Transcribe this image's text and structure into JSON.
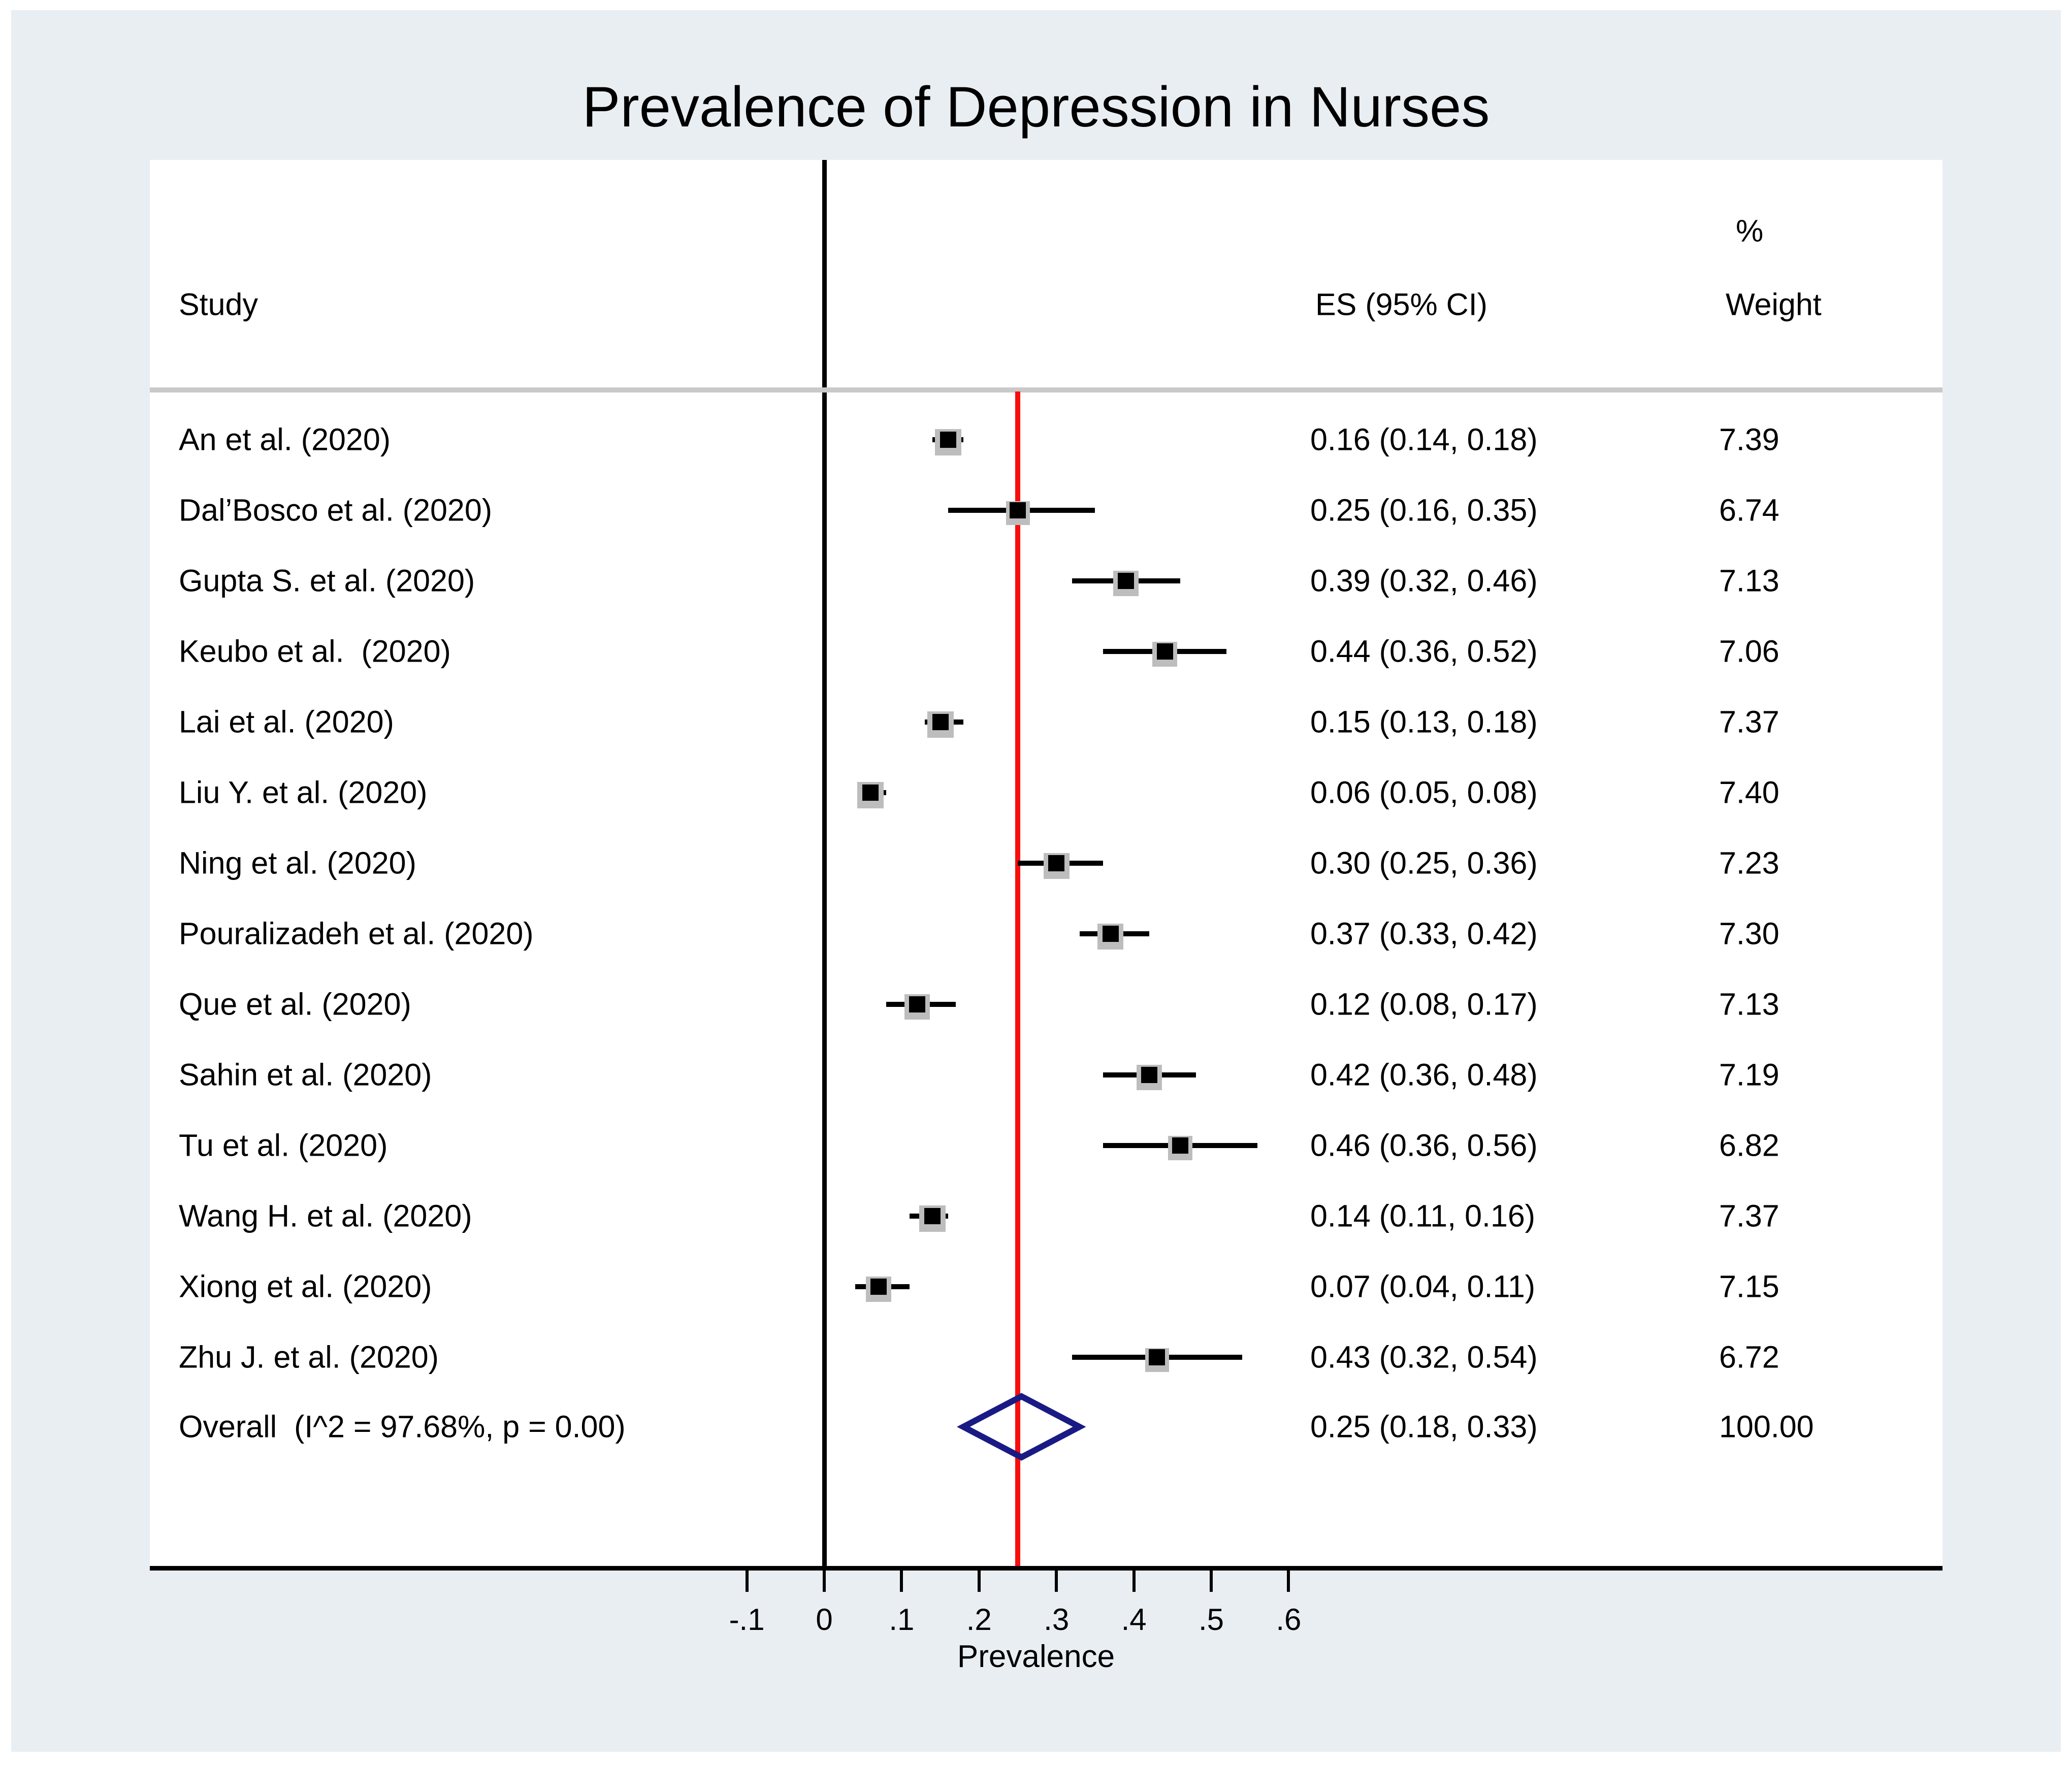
{
  "chart_data": {
    "type": "forest",
    "title": "Prevalence of Depression in Nurses",
    "xlabel": "Prevalence",
    "col_headers": {
      "study": "Study",
      "es": "ES (95% CI)",
      "weight_pct": "%",
      "weight": "Weight"
    },
    "x_ticks": [
      {
        "v": -0.1,
        "label": "-.1"
      },
      {
        "v": 0.0,
        "label": "0"
      },
      {
        "v": 0.1,
        "label": ".1"
      },
      {
        "v": 0.2,
        "label": ".2"
      },
      {
        "v": 0.3,
        "label": ".3"
      },
      {
        "v": 0.4,
        "label": ".4"
      },
      {
        "v": 0.5,
        "label": ".5"
      },
      {
        "v": 0.6,
        "label": ".6"
      }
    ],
    "zero_line": 0.0,
    "overall_ref_line": 0.25,
    "studies": [
      {
        "label": "An et al. (2020)",
        "es": 0.16,
        "lo": 0.14,
        "hi": 0.18,
        "es_ci": "0.16 (0.14, 0.18)",
        "weight": 7.39,
        "weight_text": "7.39"
      },
      {
        "label": "Dal’Bosco et al. (2020)",
        "es": 0.25,
        "lo": 0.16,
        "hi": 0.35,
        "es_ci": "0.25 (0.16, 0.35)",
        "weight": 6.74,
        "weight_text": "6.74"
      },
      {
        "label": "Gupta S. et al. (2020)",
        "es": 0.39,
        "lo": 0.32,
        "hi": 0.46,
        "es_ci": "0.39 (0.32, 0.46)",
        "weight": 7.13,
        "weight_text": "7.13"
      },
      {
        "label": "Keubo et al.  (2020)",
        "es": 0.44,
        "lo": 0.36,
        "hi": 0.52,
        "es_ci": "0.44 (0.36, 0.52)",
        "weight": 7.06,
        "weight_text": "7.06"
      },
      {
        "label": "Lai et al. (2020)",
        "es": 0.15,
        "lo": 0.13,
        "hi": 0.18,
        "es_ci": "0.15 (0.13, 0.18)",
        "weight": 7.37,
        "weight_text": "7.37"
      },
      {
        "label": "Liu Y. et al. (2020)",
        "es": 0.06,
        "lo": 0.05,
        "hi": 0.08,
        "es_ci": "0.06 (0.05, 0.08)",
        "weight": 7.4,
        "weight_text": "7.40"
      },
      {
        "label": "Ning et al. (2020)",
        "es": 0.3,
        "lo": 0.25,
        "hi": 0.36,
        "es_ci": "0.30 (0.25, 0.36)",
        "weight": 7.23,
        "weight_text": "7.23"
      },
      {
        "label": "Pouralizadeh et al. (2020)",
        "es": 0.37,
        "lo": 0.33,
        "hi": 0.42,
        "es_ci": "0.37 (0.33, 0.42)",
        "weight": 7.3,
        "weight_text": "7.30"
      },
      {
        "label": "Que et al. (2020)",
        "es": 0.12,
        "lo": 0.08,
        "hi": 0.17,
        "es_ci": "0.12 (0.08, 0.17)",
        "weight": 7.13,
        "weight_text": "7.13"
      },
      {
        "label": "Sahin et al. (2020)",
        "es": 0.42,
        "lo": 0.36,
        "hi": 0.48,
        "es_ci": "0.42 (0.36, 0.48)",
        "weight": 7.19,
        "weight_text": "7.19"
      },
      {
        "label": "Tu et al. (2020)",
        "es": 0.46,
        "lo": 0.36,
        "hi": 0.56,
        "es_ci": "0.46 (0.36, 0.56)",
        "weight": 6.82,
        "weight_text": "6.82"
      },
      {
        "label": "Wang H. et al. (2020)",
        "es": 0.14,
        "lo": 0.11,
        "hi": 0.16,
        "es_ci": "0.14 (0.11, 0.16)",
        "weight": 7.37,
        "weight_text": "7.37"
      },
      {
        "label": "Xiong et al. (2020)",
        "es": 0.07,
        "lo": 0.04,
        "hi": 0.11,
        "es_ci": "0.07 (0.04, 0.11)",
        "weight": 7.15,
        "weight_text": "7.15"
      },
      {
        "label": "Zhu J. et al. (2020)",
        "es": 0.43,
        "lo": 0.32,
        "hi": 0.54,
        "es_ci": "0.43 (0.32, 0.54)",
        "weight": 6.72,
        "weight_text": "6.72"
      }
    ],
    "overall": {
      "label": "Overall  (I^2 = 97.68%, p = 0.00)",
      "es": 0.25,
      "lo": 0.18,
      "hi": 0.33,
      "es_ci": "0.25 (0.18, 0.33)",
      "weight_text": "100.00"
    },
    "colors": {
      "panel_background": "#e9eef2",
      "plot_background": "#ffffff",
      "text": "#000000",
      "zero_line": "#000000",
      "ref_line": "#f90d0b",
      "diamond": "#1a1a85",
      "weight_box": "#bdbdbd",
      "header_separator": "#c9c9c9"
    }
  }
}
